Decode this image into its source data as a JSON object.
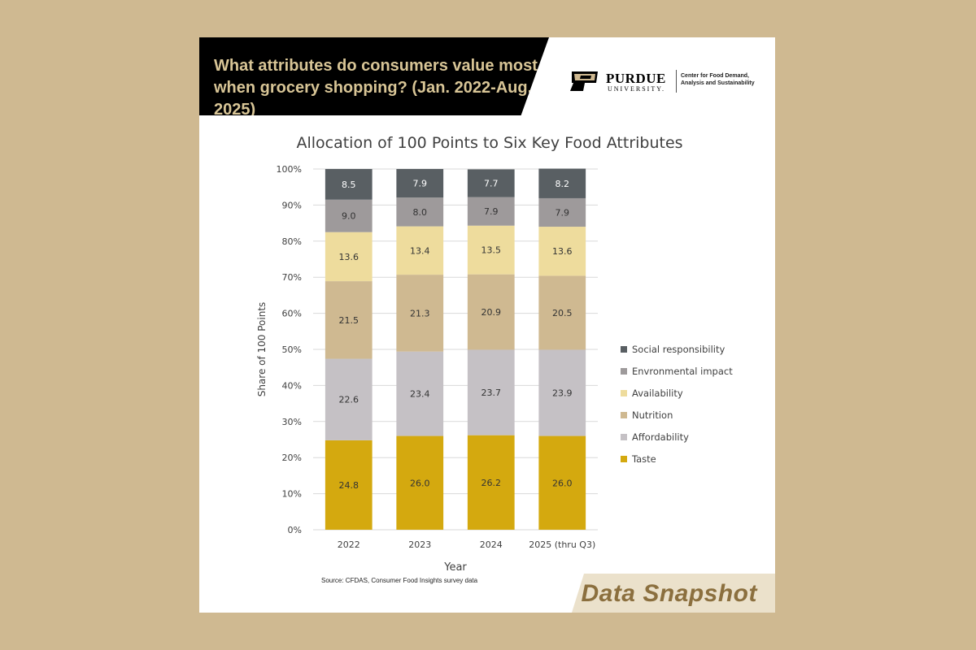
{
  "header": {
    "title_line1": "What attributes do consumers value most",
    "title_line2": "when grocery shopping? (Jan. 2022-Aug. 2025)"
  },
  "brand": {
    "name": "PURDUE",
    "sub": "UNIVERSITY.",
    "center_line1": "Center for Food Demand,",
    "center_line2": "Analysis and Sustainability"
  },
  "footer": {
    "source": "Source: CFDAS, Consumer Food Insights survey data",
    "tag": "Data Snapshot"
  },
  "chart_data": {
    "type": "bar",
    "stacked": true,
    "title": "Allocation of 100 Points to Six Key Food Attributes",
    "xlabel": "Year",
    "ylabel": "Share of 100 Points",
    "ylim": [
      0,
      100
    ],
    "yticks": [
      "0%",
      "10%",
      "20%",
      "30%",
      "40%",
      "50%",
      "60%",
      "70%",
      "80%",
      "90%",
      "100%"
    ],
    "grid": true,
    "legend_position": "right",
    "categories": [
      "2022",
      "2023",
      "2024",
      "2025 (thru Q3)"
    ],
    "series": [
      {
        "name": "Taste",
        "color": "#d4a90f",
        "values": [
          24.8,
          26.0,
          26.2,
          26.0
        ]
      },
      {
        "name": "Affordability",
        "color": "#c5c1c5",
        "values": [
          22.6,
          23.4,
          23.7,
          23.9
        ]
      },
      {
        "name": "Nutrition",
        "color": "#cfb991",
        "values": [
          21.5,
          21.3,
          20.9,
          20.5
        ]
      },
      {
        "name": "Availability",
        "color": "#eedc9d",
        "values": [
          13.6,
          13.4,
          13.5,
          13.6
        ]
      },
      {
        "name": "Envronmental impact",
        "color": "#9e9a9b",
        "values": [
          9.0,
          8.0,
          7.9,
          7.9
        ]
      },
      {
        "name": "Social responsibility",
        "color": "#595f63",
        "values": [
          8.5,
          7.9,
          7.7,
          8.2
        ]
      }
    ]
  }
}
